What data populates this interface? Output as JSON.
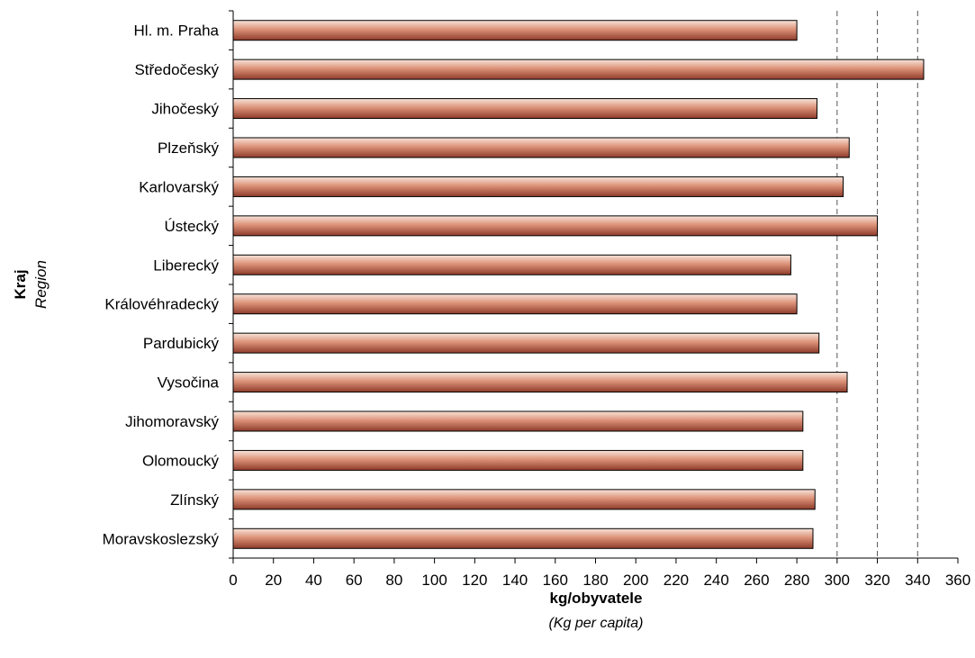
{
  "chart_data": {
    "type": "bar",
    "orientation": "horizontal",
    "categories": [
      "Hl. m. Praha",
      "Středočeský",
      "Jihočeský",
      "Plzeňský",
      "Karlovarský",
      "Ústecký",
      "Liberecký",
      "Královéhradecký",
      "Pardubický",
      "Vysočina",
      "Jihomoravský",
      "Olomoucký",
      "Zlínský",
      "Moravskoslezský"
    ],
    "values": [
      280,
      343,
      290,
      306,
      303,
      320,
      277,
      280,
      291,
      305,
      283,
      283,
      289,
      288
    ],
    "xlabel": "kg/obyvatele",
    "xlabel_sub": "(Kg per capita)",
    "ylabel": "Kraj",
    "ylabel_sub": "Region",
    "xlim": [
      0,
      360
    ],
    "xticks": [
      "0",
      "20",
      "40",
      "60",
      "80",
      "100",
      "120",
      "140",
      "160",
      "180",
      "200",
      "220",
      "240",
      "260",
      "280",
      "300",
      "320",
      "340",
      "360"
    ],
    "grid": "dashed vertical at 300, 320, 340",
    "bar_color": "#c8705a",
    "bar_highlight": "#f4ddd2",
    "bar_shadow": "#8a3a2a"
  }
}
